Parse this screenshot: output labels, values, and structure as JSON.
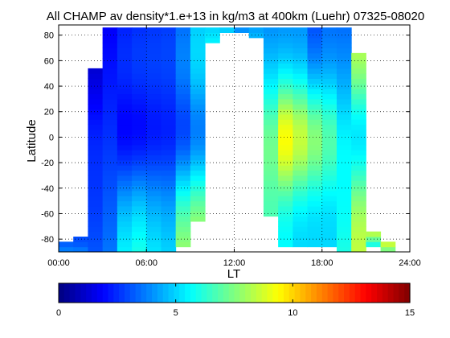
{
  "chart_data": {
    "type": "heatmap",
    "title": "All CHAMP av density*1.e+13 in kg/m3 at 400km (Luehr) 07325-08020",
    "xlabel": "LT",
    "ylabel": "Latitude",
    "xlim": [
      0,
      24
    ],
    "ylim": [
      -90,
      90
    ],
    "x_ticks": [
      "00:00",
      "06:00",
      "12:00",
      "18:00",
      "24:00"
    ],
    "y_ticks": [
      "80",
      "60",
      "40",
      "20",
      "0",
      "-20",
      "-40",
      "-60",
      "-80"
    ],
    "colorbar": {
      "range": [
        0,
        15
      ],
      "ticks": [
        "0",
        "5",
        "10",
        "15"
      ],
      "colormap": "jet"
    },
    "grid": true,
    "lat_bin_deg": 4,
    "columns": [
      {
        "lt": [
          0.0,
          1.0
        ],
        "lat": [
          -90,
          -82
        ],
        "values": [
          3.7,
          3.3
        ]
      },
      {
        "lt": [
          1.0,
          2.0
        ],
        "lat": [
          -90,
          -78
        ],
        "values": [
          3.6,
          3.2,
          3.0
        ]
      },
      {
        "lt": [
          2.0,
          3.0
        ],
        "lat": [
          -90,
          54
        ],
        "start": 3.1,
        "end": 1.1,
        "mid": 2.6
      },
      {
        "lt": [
          3.0,
          4.0
        ],
        "lat": [
          -90,
          86
        ],
        "start": 3.6,
        "end": 1.8,
        "mid": 2.6
      },
      {
        "lt": [
          4.0,
          5.0
        ],
        "lat": [
          -90,
          86
        ],
        "start": 5.5,
        "end": 2.4,
        "mid": 2.0
      },
      {
        "lt": [
          5.0,
          6.0
        ],
        "lat": [
          -90,
          86
        ],
        "start": 6.0,
        "end": 2.6,
        "mid": 2.1
      },
      {
        "lt": [
          6.0,
          7.0
        ],
        "lat": [
          -90,
          86
        ],
        "start": 5.3,
        "end": 2.7,
        "mid": 2.3
      },
      {
        "lt": [
          7.0,
          8.0
        ],
        "lat": [
          -90,
          86
        ],
        "start": 5.0,
        "end": 2.8,
        "mid": 2.4
      },
      {
        "lt": [
          8.0,
          9.0
        ],
        "lat": [
          -86,
          86
        ],
        "start": 7.8,
        "end": 3.6,
        "mid": 3.0
      },
      {
        "lt": [
          9.0,
          10.0
        ],
        "lat": [
          -66,
          86
        ],
        "start": 8.0,
        "end": 5.0,
        "mid": 3.6
      },
      {
        "lt": [
          10.0,
          11.0
        ],
        "lat": [
          74,
          86
        ],
        "start": 5.5,
        "end": 5.0,
        "mid": 5.2
      },
      {
        "lt": [
          11.0,
          12.0
        ],
        "lat": [
          82,
          86
        ],
        "start": 5.0,
        "end": 4.8,
        "mid": 4.9
      },
      {
        "lt": [
          12.0,
          13.0
        ],
        "lat": [
          82,
          86
        ],
        "start": 4.0,
        "end": 4.0,
        "mid": 4.0
      },
      {
        "lt": [
          13.0,
          14.0
        ],
        "lat": [
          78,
          86
        ],
        "start": 4.6,
        "end": 4.2,
        "mid": 4.4
      },
      {
        "lt": [
          14.0,
          15.0
        ],
        "lat": [
          -62,
          86
        ],
        "start": 6.5,
        "end": 4.0,
        "mid": 7.0
      },
      {
        "lt": [
          15.0,
          16.0
        ],
        "lat": [
          -86,
          86
        ],
        "start": 5.5,
        "end": 4.0,
        "mid": 9.3
      },
      {
        "lt": [
          16.0,
          17.0
        ],
        "lat": [
          -86,
          86
        ],
        "start": 5.0,
        "end": 4.0,
        "mid": 8.5
      },
      {
        "lt": [
          17.0,
          18.0
        ],
        "lat": [
          -86,
          86
        ],
        "start": 5.0,
        "end": 3.0,
        "mid": 7.6
      },
      {
        "lt": [
          18.0,
          19.0
        ],
        "lat": [
          -86,
          86
        ],
        "start": 5.0,
        "end": 3.5,
        "mid": 6.8
      },
      {
        "lt": [
          19.0,
          20.0
        ],
        "lat": [
          -90,
          86
        ],
        "start": 6.0,
        "end": 3.5,
        "mid": 5.5
      },
      {
        "lt": [
          20.0,
          21.0
        ],
        "lat": [
          -90,
          66
        ],
        "start": 8.5,
        "end": 8.5,
        "mid": 5.3
      },
      {
        "lt": [
          21.0,
          22.0
        ],
        "lat": [
          -86,
          -74
        ],
        "start": 5.5,
        "end": 8.8,
        "mid": 6.5
      },
      {
        "lt": [
          22.0,
          23.0
        ],
        "lat": [
          -90,
          -82
        ],
        "start": 7.0,
        "end": 9.0,
        "mid": 8.0
      }
    ]
  }
}
